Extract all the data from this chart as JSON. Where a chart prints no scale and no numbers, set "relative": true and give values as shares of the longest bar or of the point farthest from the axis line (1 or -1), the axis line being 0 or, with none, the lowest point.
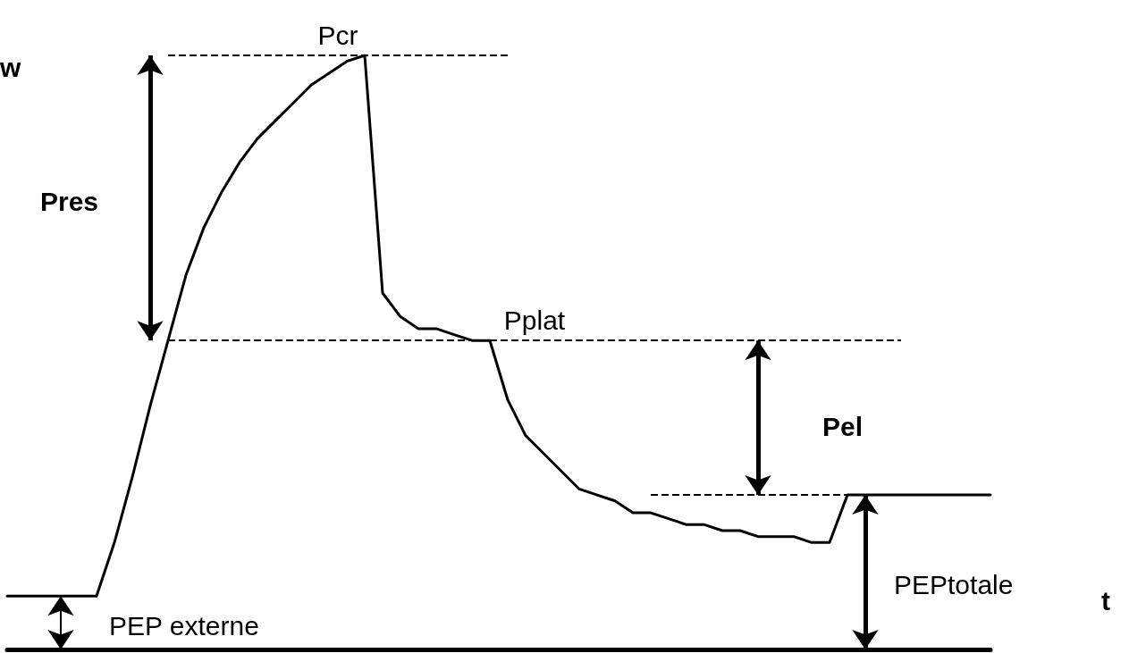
{
  "chart_data": {
    "type": "line",
    "relative": true,
    "ylabel": "w",
    "xlabel": "t",
    "categories": [
      null,
      null,
      null,
      null,
      null,
      null,
      null,
      null,
      null,
      null,
      null,
      null,
      null,
      null,
      null,
      null,
      null,
      null,
      null,
      null,
      null,
      null,
      null,
      null,
      null,
      null,
      null,
      null,
      null,
      null,
      null,
      null,
      null,
      null,
      null,
      null,
      null,
      null,
      null,
      null,
      null,
      null,
      null,
      null,
      null,
      null,
      null,
      null,
      null,
      null,
      null,
      null,
      null,
      null,
      null,
      null
    ],
    "series": [
      {
        "color": "#000000",
        "values": [
          0.09,
          0.09,
          0.09,
          0.09,
          0.09,
          0.09,
          0.18,
          0.29,
          0.41,
          0.52,
          0.63,
          0.71,
          0.77,
          0.82,
          0.86,
          0.89,
          0.92,
          0.95,
          0.97,
          0.99,
          1,
          0.6,
          0.56,
          0.54,
          0.54,
          0.53,
          0.52,
          0.52,
          0.42,
          0.36,
          0.33,
          0.3,
          0.27,
          0.26,
          0.25,
          0.23,
          0.23,
          0.22,
          0.21,
          0.21,
          0.2,
          0.2,
          0.19,
          0.19,
          0.19,
          0.18,
          0.18,
          0.26,
          0.26,
          0.26,
          0.26,
          0.26,
          0.26,
          0.26,
          0.26,
          0.26
        ]
      }
    ],
    "ref_lines": [
      {
        "axis": "y",
        "value": 1,
        "label": "Pcr",
        "line_style": "dashed"
      },
      {
        "axis": "y",
        "value": 0.52,
        "label": "Pplat",
        "line_style": "dashed"
      },
      {
        "axis": "y",
        "value": 0.26,
        "line_style": "dashed"
      }
    ],
    "annotations": [
      "Pres",
      "Pel",
      "PEPtotale",
      "PEP externe"
    ],
    "marker": "none",
    "line_style": "solid",
    "grid": false
  }
}
